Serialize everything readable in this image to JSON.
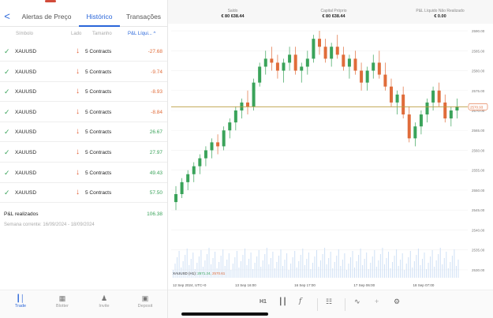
{
  "tabs": {
    "back": "<",
    "items": [
      "Alertas de Preço",
      "Histórico",
      "Transações"
    ]
  },
  "columns": {
    "symbol": "Símbolo",
    "side": "Lado",
    "size": "Tamanho",
    "pnl": "P&L Líqui... ^"
  },
  "trades": [
    {
      "symbol": "XAUUSD",
      "size": "5 Contracts",
      "pnl": "-27.68",
      "sign": "neg"
    },
    {
      "symbol": "XAUUSD",
      "size": "5 Contracts",
      "pnl": "-9.74",
      "sign": "neg"
    },
    {
      "symbol": "XAUUSD",
      "size": "5 Contracts",
      "pnl": "-8.93",
      "sign": "neg"
    },
    {
      "symbol": "XAUUSD",
      "size": "5 Contracts",
      "pnl": "-8.84",
      "sign": "neg"
    },
    {
      "symbol": "XAUUSD",
      "size": "5 Contracts",
      "pnl": "26.67",
      "sign": "pos"
    },
    {
      "symbol": "XAUUSD",
      "size": "5 Contracts",
      "pnl": "27.97",
      "sign": "pos"
    },
    {
      "symbol": "XAUUSD",
      "size": "5 Contracts",
      "pnl": "49.43",
      "sign": "pos"
    },
    {
      "symbol": "XAUUSD",
      "size": "5 Contracts",
      "pnl": "57.50",
      "sign": "pos"
    }
  ],
  "realized": {
    "label": "P&L realizados",
    "value": "106.38",
    "period": "Semana corrente: 16/09/2024 - 18/09/2024"
  },
  "bottom_nav": [
    "Trade",
    "Blotter",
    "Invite",
    "Deposit"
  ],
  "summary": {
    "balance_label": "Saldo",
    "balance_value": "€ 80 638.44",
    "equity_label": "Capital Próprio",
    "equity_value": "€ 80 638.44",
    "unrealized_label": "P&L Líquido Não Realizado",
    "unrealized_value": "€ 0.00"
  },
  "chart_info": {
    "legend_symbol": "XAUUSD (H1)",
    "legend_bid": "2571.24",
    "legend_ask": "2570.61",
    "current_price_label": "2570.93",
    "timeframe": "H1"
  },
  "colors": {
    "accent": "#2a66d9",
    "bull": "#3aa35a",
    "bear": "#e06c3a",
    "price_line": "#b89a3c"
  },
  "chart_data": {
    "type": "candlestick",
    "x_ticks": [
      "12 Sep 2024, UTC+0",
      "13 Sep 16:00",
      "16 Sep 17:00",
      "17 Sep 06:00",
      "18 Sep 07:00"
    ],
    "y_ticks": [
      2530,
      2535,
      2540,
      2545,
      2550,
      2555,
      2560,
      2565,
      2570,
      2575,
      2580,
      2585,
      2590
    ],
    "ylim": [
      2528,
      2591
    ],
    "current_price": 2570.93,
    "candles": [
      [
        2547,
        2551,
        2545,
        2549
      ],
      [
        2549,
        2553,
        2548,
        2552
      ],
      [
        2552,
        2555,
        2550,
        2554
      ],
      [
        2554,
        2557,
        2552,
        2556
      ],
      [
        2556,
        2559,
        2554,
        2558
      ],
      [
        2558,
        2561,
        2556,
        2560
      ],
      [
        2560,
        2563,
        2558,
        2562
      ],
      [
        2562,
        2564,
        2559,
        2561
      ],
      [
        2561,
        2566,
        2560,
        2565
      ],
      [
        2565,
        2568,
        2563,
        2567
      ],
      [
        2567,
        2571,
        2565,
        2570
      ],
      [
        2570,
        2573,
        2568,
        2572
      ],
      [
        2572,
        2575,
        2569,
        2571
      ],
      [
        2571,
        2578,
        2570,
        2577
      ],
      [
        2577,
        2582,
        2576,
        2581
      ],
      [
        2581,
        2585,
        2579,
        2583
      ],
      [
        2583,
        2586,
        2580,
        2582
      ],
      [
        2582,
        2584,
        2578,
        2580
      ],
      [
        2580,
        2583,
        2577,
        2582
      ],
      [
        2582,
        2586,
        2580,
        2584
      ],
      [
        2584,
        2586,
        2579,
        2580
      ],
      [
        2580,
        2582,
        2577,
        2581
      ],
      [
        2581,
        2585,
        2579,
        2583
      ],
      [
        2583,
        2589,
        2582,
        2588
      ],
      [
        2588,
        2590,
        2584,
        2586
      ],
      [
        2586,
        2588,
        2582,
        2583
      ],
      [
        2583,
        2587,
        2581,
        2586
      ],
      [
        2586,
        2589,
        2583,
        2584
      ],
      [
        2584,
        2586,
        2580,
        2581
      ],
      [
        2581,
        2584,
        2578,
        2583
      ],
      [
        2583,
        2585,
        2579,
        2580
      ],
      [
        2580,
        2582,
        2575,
        2577
      ],
      [
        2577,
        2581,
        2575,
        2580
      ],
      [
        2580,
        2584,
        2578,
        2582
      ],
      [
        2582,
        2585,
        2578,
        2579
      ],
      [
        2579,
        2582,
        2575,
        2576
      ],
      [
        2576,
        2578,
        2571,
        2572
      ],
      [
        2572,
        2575,
        2569,
        2574
      ],
      [
        2574,
        2576,
        2568,
        2569
      ],
      [
        2569,
        2571,
        2562,
        2563
      ],
      [
        2563,
        2567,
        2561,
        2566
      ],
      [
        2566,
        2570,
        2564,
        2569
      ],
      [
        2569,
        2573,
        2567,
        2572
      ],
      [
        2572,
        2576,
        2570,
        2575
      ],
      [
        2575,
        2577,
        2571,
        2572
      ],
      [
        2572,
        2574,
        2567,
        2568
      ],
      [
        2568,
        2571,
        2566,
        2570
      ],
      [
        2570,
        2573,
        2568,
        2571
      ]
    ]
  }
}
